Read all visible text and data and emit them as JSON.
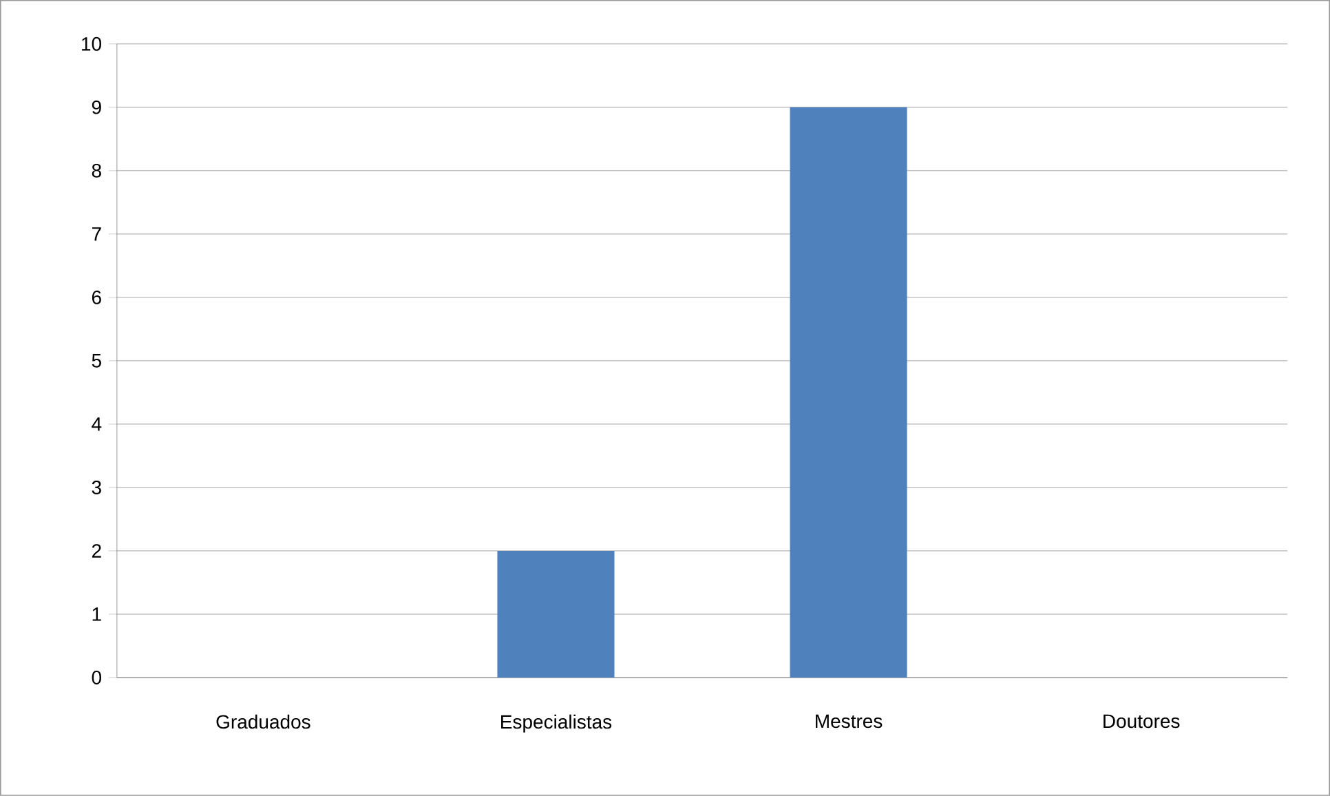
{
  "chart_data": {
    "type": "bar",
    "categories": [
      "Graduados",
      "Especialistas",
      "Mestres",
      "Doutores"
    ],
    "values": [
      0,
      2,
      9,
      0
    ],
    "color": "#4f81bd",
    "ylim": [
      0,
      10
    ],
    "yticks": [
      0,
      1,
      2,
      3,
      4,
      5,
      6,
      7,
      8,
      9,
      10
    ],
    "grid": "y"
  }
}
